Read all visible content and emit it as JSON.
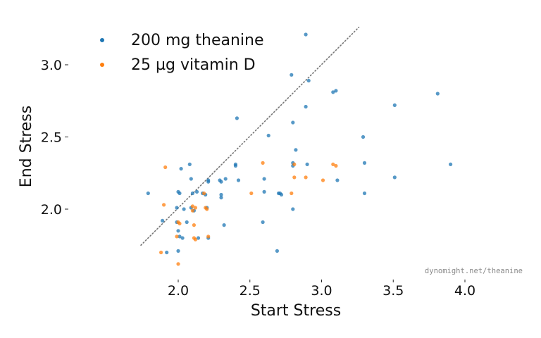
{
  "chart_data": {
    "type": "scatter",
    "xlabel": "Start Stress",
    "ylabel": "End Stress",
    "xlim": [
      1.72,
      4.3
    ],
    "ylim": [
      1.58,
      3.3
    ],
    "xticks": [
      2.0,
      2.5,
      3.0,
      3.5,
      4.0
    ],
    "xtick_labels": [
      "2.0",
      "2.5",
      "3.0",
      "3.5",
      "4.0"
    ],
    "yticks": [
      2.0,
      2.5,
      3.0
    ],
    "ytick_labels": [
      "2.0",
      "2.5",
      "3.0"
    ],
    "grid": false,
    "legend_position": "top-left",
    "reference_line": {
      "x": [
        1.74,
        3.26
      ],
      "y": [
        1.75,
        3.26
      ],
      "style": "dotted",
      "color": "#777777"
    },
    "watermark": "dynomight.net/theanine",
    "series": [
      {
        "name": "200 mg theanine",
        "color": "#1f77b4",
        "points": [
          [
            1.79,
            2.11
          ],
          [
            1.89,
            1.92
          ],
          [
            1.92,
            1.7
          ],
          [
            1.99,
            2.01
          ],
          [
            1.99,
            1.91
          ],
          [
            2.0,
            2.12
          ],
          [
            2.01,
            2.11
          ],
          [
            2.02,
            2.28
          ],
          [
            2.0,
            1.85
          ],
          [
            2.01,
            1.81
          ],
          [
            2.03,
            1.8
          ],
          [
            2.0,
            1.71
          ],
          [
            2.04,
            2.0
          ],
          [
            2.06,
            1.91
          ],
          [
            2.08,
            2.31
          ],
          [
            2.09,
            2.21
          ],
          [
            2.09,
            2.01
          ],
          [
            2.1,
            2.11
          ],
          [
            2.11,
            1.99
          ],
          [
            2.13,
            2.12
          ],
          [
            2.14,
            1.8
          ],
          [
            2.17,
            2.11
          ],
          [
            2.19,
            2.1
          ],
          [
            2.2,
            2.01
          ],
          [
            2.21,
            2.2
          ],
          [
            2.21,
            2.19
          ],
          [
            2.21,
            1.8
          ],
          [
            2.29,
            2.2
          ],
          [
            2.3,
            2.19
          ],
          [
            2.3,
            2.1
          ],
          [
            2.3,
            2.08
          ],
          [
            2.32,
            1.89
          ],
          [
            2.33,
            2.21
          ],
          [
            2.4,
            2.31
          ],
          [
            2.4,
            2.3
          ],
          [
            2.41,
            2.63
          ],
          [
            2.42,
            2.2
          ],
          [
            2.59,
            1.91
          ],
          [
            2.6,
            2.21
          ],
          [
            2.6,
            2.12
          ],
          [
            2.63,
            2.51
          ],
          [
            2.69,
            1.71
          ],
          [
            2.7,
            2.11
          ],
          [
            2.71,
            2.11
          ],
          [
            2.72,
            2.1
          ],
          [
            2.79,
            2.93
          ],
          [
            2.8,
            2.6
          ],
          [
            2.8,
            2.32
          ],
          [
            2.8,
            2.3
          ],
          [
            2.8,
            2.0
          ],
          [
            2.82,
            2.41
          ],
          [
            2.89,
            3.21
          ],
          [
            2.89,
            2.71
          ],
          [
            2.9,
            2.31
          ],
          [
            2.91,
            2.89
          ],
          [
            3.08,
            2.81
          ],
          [
            3.1,
            2.82
          ],
          [
            3.11,
            2.2
          ],
          [
            3.29,
            2.5
          ],
          [
            3.3,
            2.32
          ],
          [
            3.3,
            2.11
          ],
          [
            3.51,
            2.72
          ],
          [
            3.51,
            2.22
          ],
          [
            3.81,
            2.8
          ],
          [
            3.9,
            2.31
          ]
        ]
      },
      {
        "name": "25 µg vitamin D",
        "color": "#ff7f0e",
        "points": [
          [
            1.88,
            1.7
          ],
          [
            1.9,
            2.03
          ],
          [
            1.91,
            2.29
          ],
          [
            1.99,
            1.81
          ],
          [
            2.0,
            1.91
          ],
          [
            2.0,
            1.62
          ],
          [
            2.01,
            1.9
          ],
          [
            2.1,
            2.02
          ],
          [
            2.1,
            1.99
          ],
          [
            2.11,
            1.89
          ],
          [
            2.11,
            1.8
          ],
          [
            2.12,
            1.79
          ],
          [
            2.12,
            2.01
          ],
          [
            2.18,
            2.11
          ],
          [
            2.19,
            2.01
          ],
          [
            2.2,
            2.0
          ],
          [
            2.21,
            1.81
          ],
          [
            2.51,
            2.11
          ],
          [
            2.59,
            2.32
          ],
          [
            2.79,
            2.11
          ],
          [
            2.81,
            2.31
          ],
          [
            2.81,
            2.22
          ],
          [
            2.89,
            2.22
          ],
          [
            3.01,
            2.2
          ],
          [
            3.08,
            2.31
          ],
          [
            3.1,
            2.3
          ]
        ]
      }
    ]
  }
}
